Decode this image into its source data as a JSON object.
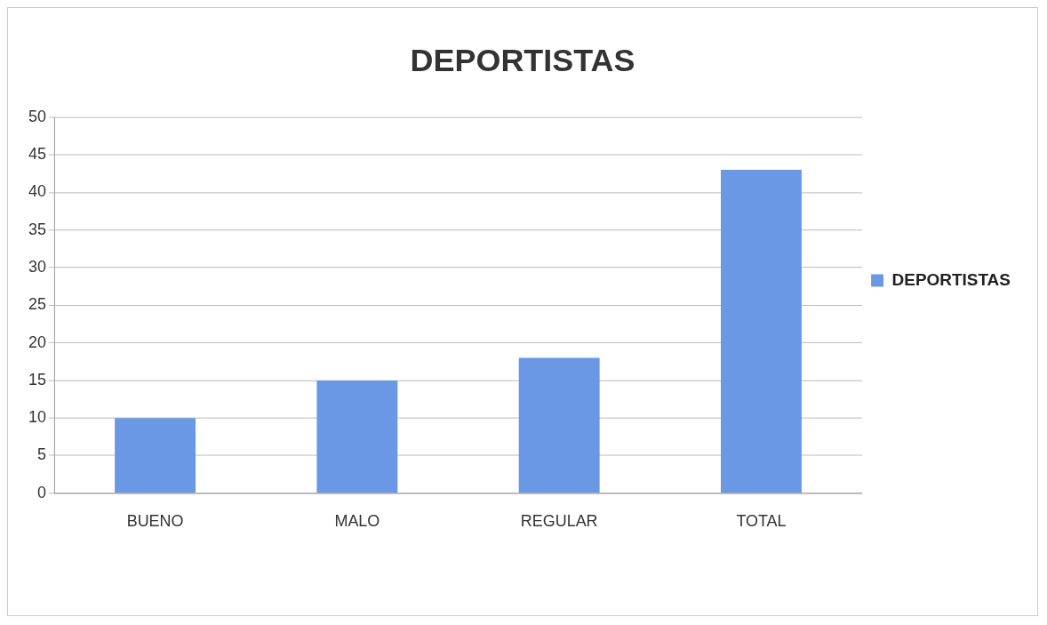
{
  "chart_data": {
    "type": "bar",
    "title": "DEPORTISTAS",
    "categories": [
      "BUENO",
      "MALO",
      "REGULAR",
      "TOTAL"
    ],
    "series": [
      {
        "name": "DEPORTISTAS",
        "color": "#6a98e4",
        "values": [
          10,
          15,
          18,
          43
        ]
      }
    ],
    "ylim": [
      0,
      50
    ],
    "yticks": [
      0,
      5,
      10,
      15,
      20,
      25,
      30,
      35,
      40,
      45,
      50
    ],
    "grid": "y",
    "legend": "right"
  }
}
